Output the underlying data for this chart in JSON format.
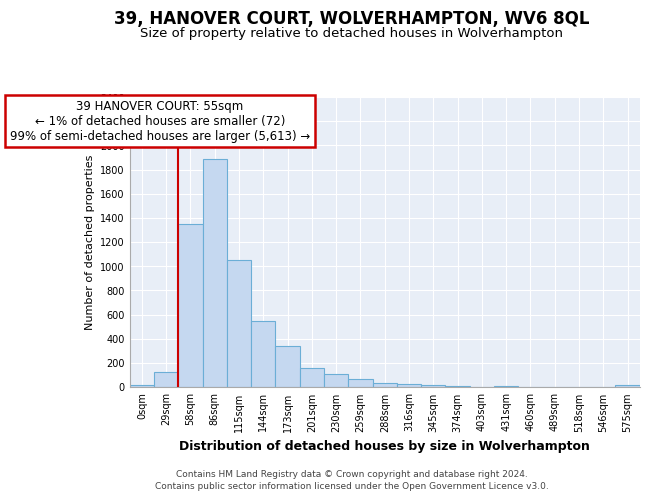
{
  "title": "39, HANOVER COURT, WOLVERHAMPTON, WV6 8QL",
  "subtitle": "Size of property relative to detached houses in Wolverhampton",
  "xlabel": "Distribution of detached houses by size in Wolverhampton",
  "ylabel": "Number of detached properties",
  "bar_labels": [
    "0sqm",
    "29sqm",
    "58sqm",
    "86sqm",
    "115sqm",
    "144sqm",
    "173sqm",
    "201sqm",
    "230sqm",
    "259sqm",
    "288sqm",
    "316sqm",
    "345sqm",
    "374sqm",
    "403sqm",
    "431sqm",
    "460sqm",
    "489sqm",
    "518sqm",
    "546sqm",
    "575sqm"
  ],
  "bar_values": [
    15,
    125,
    1350,
    1890,
    1050,
    545,
    338,
    160,
    110,
    65,
    35,
    25,
    20,
    10,
    0,
    5,
    0,
    0,
    0,
    0,
    15
  ],
  "bar_color": "#c5d8f0",
  "bar_edge_color": "#6baed6",
  "annotation_line1": "39 HANOVER COURT: 55sqm",
  "annotation_line2": "← 1% of detached houses are smaller (72)",
  "annotation_line3": "99% of semi-detached houses are larger (5,613) →",
  "annotation_box_edgecolor": "#cc0000",
  "red_line_bar_index": 2,
  "ylim": [
    0,
    2400
  ],
  "yticks": [
    0,
    200,
    400,
    600,
    800,
    1000,
    1200,
    1400,
    1600,
    1800,
    2000,
    2200,
    2400
  ],
  "footer1": "Contains HM Land Registry data © Crown copyright and database right 2024.",
  "footer2": "Contains public sector information licensed under the Open Government Licence v3.0.",
  "axes_facecolor": "#e8eef7",
  "fig_facecolor": "#ffffff",
  "grid_color": "#ffffff",
  "title_fontsize": 12,
  "subtitle_fontsize": 9.5,
  "ylabel_fontsize": 8,
  "xlabel_fontsize": 9,
  "tick_fontsize": 7,
  "ann_fontsize": 8.5,
  "footer_fontsize": 6.5
}
